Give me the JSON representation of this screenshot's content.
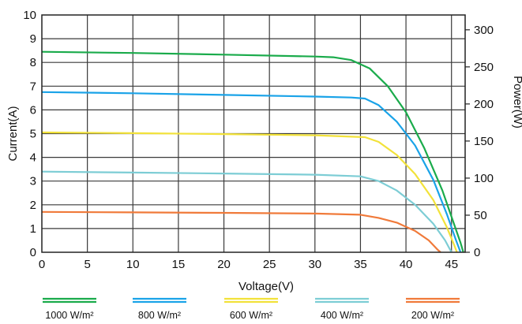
{
  "chart_data": {
    "type": "line",
    "xlabel": "Voltage(V)",
    "ylabel": "Current(A)",
    "y2label": "Power(W)",
    "xlim": [
      0,
      46.5
    ],
    "ylim": [
      0,
      10
    ],
    "y2lim": [
      0,
      320
    ],
    "x_ticks": [
      0,
      5,
      10,
      15,
      20,
      25,
      30,
      35,
      40,
      45
    ],
    "y_ticks": [
      0,
      1,
      2,
      3,
      4,
      5,
      6,
      7,
      8,
      9,
      10
    ],
    "y2_ticks": [
      0,
      50,
      100,
      150,
      200,
      250,
      300
    ],
    "grid": true,
    "legend_position": "bottom",
    "series": [
      {
        "name": "1000 W/m²",
        "color": "#1aab4b",
        "points": [
          [
            0,
            8.45
          ],
          [
            10,
            8.4
          ],
          [
            20,
            8.33
          ],
          [
            30,
            8.25
          ],
          [
            32,
            8.22
          ],
          [
            34,
            8.1
          ],
          [
            36,
            7.75
          ],
          [
            38,
            7.0
          ],
          [
            40,
            5.9
          ],
          [
            42,
            4.4
          ],
          [
            44,
            2.6
          ],
          [
            45,
            1.5
          ],
          [
            46,
            0.4
          ],
          [
            46.3,
            0
          ]
        ]
      },
      {
        "name": "800 W/m²",
        "color": "#1aa3e8",
        "points": [
          [
            0,
            6.75
          ],
          [
            10,
            6.7
          ],
          [
            20,
            6.63
          ],
          [
            30,
            6.56
          ],
          [
            34,
            6.52
          ],
          [
            35.5,
            6.48
          ],
          [
            37,
            6.2
          ],
          [
            39,
            5.5
          ],
          [
            41,
            4.5
          ],
          [
            43,
            3.05
          ],
          [
            44.5,
            1.6
          ],
          [
            45.5,
            0.5
          ],
          [
            46.0,
            0
          ]
        ]
      },
      {
        "name": "600 W/m²",
        "color": "#f2e23a",
        "points": [
          [
            0,
            5.05
          ],
          [
            10,
            5.02
          ],
          [
            20,
            4.98
          ],
          [
            30,
            4.93
          ],
          [
            35.5,
            4.85
          ],
          [
            37,
            4.65
          ],
          [
            39,
            4.1
          ],
          [
            41,
            3.3
          ],
          [
            43,
            2.2
          ],
          [
            44.5,
            1.05
          ],
          [
            45.3,
            0.3
          ],
          [
            45.6,
            0
          ]
        ]
      },
      {
        "name": "400 W/m²",
        "color": "#7dcdd5",
        "points": [
          [
            0,
            3.4
          ],
          [
            10,
            3.36
          ],
          [
            20,
            3.32
          ],
          [
            30,
            3.27
          ],
          [
            35,
            3.2
          ],
          [
            37,
            3.0
          ],
          [
            39,
            2.6
          ],
          [
            41,
            2.0
          ],
          [
            43,
            1.2
          ],
          [
            44.3,
            0.5
          ],
          [
            45.0,
            0
          ]
        ]
      },
      {
        "name": "200 W/m²",
        "color": "#f07a3a",
        "points": [
          [
            0,
            1.7
          ],
          [
            10,
            1.68
          ],
          [
            20,
            1.66
          ],
          [
            30,
            1.63
          ],
          [
            35,
            1.58
          ],
          [
            37,
            1.45
          ],
          [
            39,
            1.25
          ],
          [
            41,
            0.9
          ],
          [
            42.5,
            0.5
          ],
          [
            43.5,
            0.1
          ],
          [
            43.8,
            0
          ]
        ]
      }
    ]
  }
}
